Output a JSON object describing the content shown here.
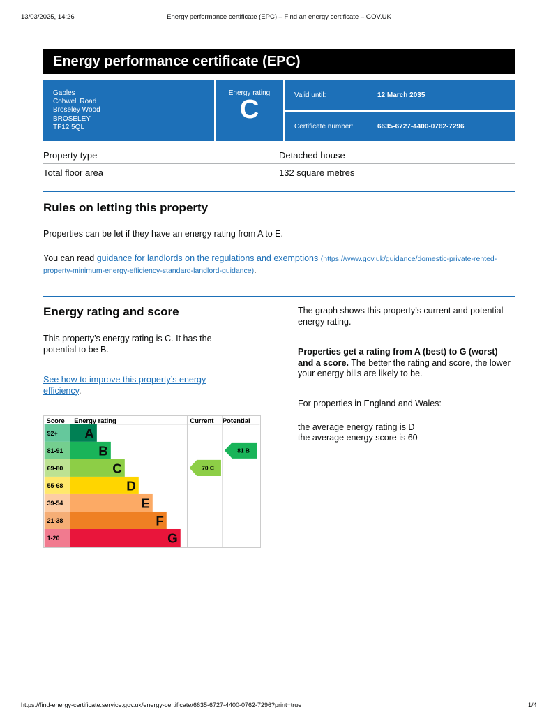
{
  "print_header": {
    "date": "13/03/2025, 14:26",
    "title": "Energy performance certificate (EPC) – Find an energy certificate – GOV.UK"
  },
  "title": "Energy performance certificate (EPC)",
  "address": [
    "Gables",
    "Cobwell Road",
    "Broseley Wood",
    "BROSELEY",
    "TF12 5QL"
  ],
  "rating": {
    "label": "Energy rating",
    "value": "C"
  },
  "valid": {
    "label": "Valid until:",
    "value": "12 March 2035"
  },
  "cert": {
    "label": "Certificate number:",
    "value": "6635-6727-4400-0762-7296"
  },
  "property": [
    {
      "label": "Property type",
      "value": "Detached house"
    },
    {
      "label": "Total floor area",
      "value": "132 square metres"
    }
  ],
  "rules": {
    "heading": "Rules on letting this property",
    "p1": "Properties can be let if they have an energy rating from A to E.",
    "p2_pre": "You can read ",
    "link": "guidance for landlords on the regulations and exemptions",
    "link_url": "(https://www.gov.uk/guidance/domestic-private-rented-property-minimum-energy-efficiency-standard-landlord-guidance)",
    "p2_post": "."
  },
  "score": {
    "heading": "Energy rating and score",
    "p1": "This property’s energy rating is C. It has the potential to be B.",
    "link": "See how to improve this property’s energy efficiency",
    "link_post": ".",
    "r1": "The graph shows this property’s current and potential energy rating.",
    "r2_bold": "Properties get a rating from A (best) to G (worst) and a score.",
    "r2": " The better the rating and score, the lower your energy bills are likely to be.",
    "r3": "For properties in England and Wales:",
    "r4": "the average energy rating is D",
    "r5": "the average energy score is 60"
  },
  "chart_data": {
    "type": "table",
    "headers": [
      "Score",
      "Energy rating",
      "Current",
      "Potential"
    ],
    "bands": [
      {
        "band": "A",
        "range": "92+",
        "color": "#008054",
        "light": "#65c89c"
      },
      {
        "band": "B",
        "range": "81-91",
        "color": "#19b459",
        "light": "#74cf8f"
      },
      {
        "band": "C",
        "range": "69-80",
        "color": "#8dce46",
        "light": "#bde292"
      },
      {
        "band": "D",
        "range": "55-68",
        "color": "#ffd500",
        "light": "#ffe86b"
      },
      {
        "band": "E",
        "range": "39-54",
        "color": "#fcaa65",
        "light": "#fdcda5"
      },
      {
        "band": "F",
        "range": "21-38",
        "color": "#ef8023",
        "light": "#f5ae76"
      },
      {
        "band": "G",
        "range": "1-20",
        "color": "#e9153b",
        "light": "#f17a8f"
      }
    ],
    "current": {
      "score": 70,
      "band": "C",
      "label": "70  C"
    },
    "potential": {
      "score": 81,
      "band": "B",
      "label": "81  B"
    }
  },
  "footer": {
    "url": "https://find-energy-certificate.service.gov.uk/energy-certificate/6635-6727-4400-0762-7296?print=true",
    "page": "1/4"
  }
}
